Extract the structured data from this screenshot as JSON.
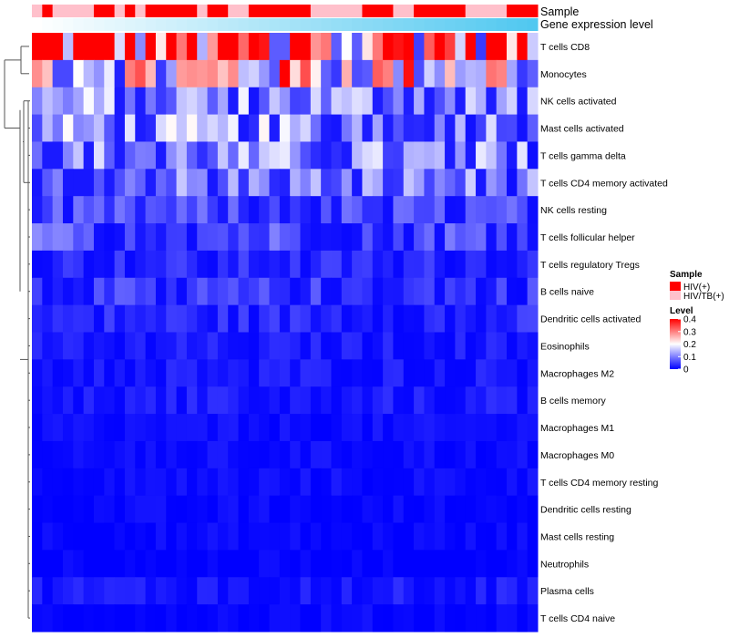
{
  "chart_data": {
    "type": "heatmap",
    "title": "",
    "rows": [
      "T cells CD8",
      "Monocytes",
      "NK cells activated",
      "Mast cells activated",
      "T cells gamma delta",
      "T cells CD4 memory activated",
      "NK cells resting",
      "T cells follicular helper",
      "T cells regulatory  Tregs",
      "B cells naive",
      "Dendritic cells activated",
      "Eosinophils",
      "Macrophages M2",
      "B cells memory",
      "Macrophages M1",
      "Macrophages M0",
      "T cells CD4 memory resting",
      "Dendritic cells resting",
      "Mast cells resting",
      "Neutrophils",
      "Plasma cells",
      "T cells CD4 naive"
    ],
    "row_typical_level": [
      0.36,
      0.22,
      0.11,
      0.11,
      0.1,
      0.09,
      0.05,
      0.06,
      0.03,
      0.04,
      0.03,
      0.02,
      0.02,
      0.02,
      0.01,
      0.01,
      0.01,
      0.005,
      0.005,
      0.0,
      0.02,
      0.005
    ],
    "n_samples": 49,
    "annotations": [
      {
        "name": "Sample",
        "groups": [
          "HIV(+)",
          "HIV/TB(+)"
        ],
        "colors": {
          "HIV(+)": "#ff0000",
          "HIV/TB(+)": "#ffc0cb"
        },
        "sample_groups": [
          "HIV/TB(+)",
          "HIV(+)",
          "HIV/TB(+)",
          "HIV/TB(+)",
          "HIV/TB(+)",
          "HIV/TB(+)",
          "HIV(+)",
          "HIV(+)",
          "HIV/TB(+)",
          "HIV(+)",
          "HIV/TB(+)",
          "HIV(+)",
          "HIV(+)",
          "HIV(+)",
          "HIV(+)",
          "HIV(+)",
          "HIV/TB(+)",
          "HIV(+)",
          "HIV(+)",
          "HIV/TB(+)",
          "HIV/TB(+)",
          "HIV(+)",
          "HIV(+)",
          "HIV(+)",
          "HIV(+)",
          "HIV(+)",
          "HIV(+)",
          "HIV/TB(+)",
          "HIV/TB(+)",
          "HIV/TB(+)",
          "HIV/TB(+)",
          "HIV/TB(+)",
          "HIV(+)",
          "HIV(+)",
          "HIV(+)",
          "HIV/TB(+)",
          "HIV/TB(+)",
          "HIV(+)",
          "HIV(+)",
          "HIV(+)",
          "HIV(+)",
          "HIV(+)",
          "HIV/TB(+)",
          "HIV/TB(+)",
          "HIV/TB(+)",
          "HIV/TB(+)",
          "HIV(+)",
          "HIV(+)",
          "HIV(+)"
        ]
      },
      {
        "name": "Gene expression level",
        "color_low": "#ffffff",
        "color_high": "#50c8f0"
      }
    ],
    "legends": [
      {
        "title": "Sample",
        "entries": [
          "HIV(+)",
          "HIV/TB(+)"
        ]
      },
      {
        "title": "Level",
        "ticks": [
          0.4,
          0.3,
          0.2,
          0.1,
          0
        ],
        "tick_labels": [
          "0.4",
          "0.3",
          "0.2",
          "0.1",
          "0"
        ],
        "range": [
          0,
          0.4
        ]
      }
    ],
    "colors": {
      "low": "#0000ff",
      "mid": "#ffffff",
      "high": "#ff0000"
    },
    "row_dendrogram": true,
    "legend_position": "right"
  }
}
